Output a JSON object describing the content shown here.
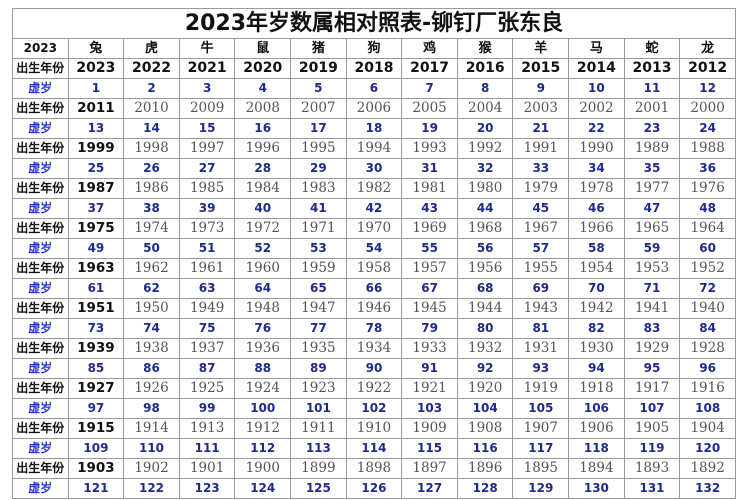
{
  "title": "2023年岁数属相对照表-铆钉厂张东良",
  "header": {
    "year": "2023",
    "zodiac": [
      "兔",
      "虎",
      "牛",
      "鼠",
      "猪",
      "狗",
      "鸡",
      "猴",
      "羊",
      "马",
      "蛇",
      "龙"
    ]
  },
  "birth_label": "出生年份",
  "age_label": "虚岁",
  "accent_color": "#1e2a8c",
  "rows": [
    {
      "years": [
        "2023",
        "2022",
        "2021",
        "2020",
        "2019",
        "2018",
        "2017",
        "2016",
        "2015",
        "2014",
        "2013",
        "2012"
      ],
      "ages": [
        "1",
        "2",
        "3",
        "4",
        "5",
        "6",
        "7",
        "8",
        "9",
        "10",
        "11",
        "12"
      ]
    },
    {
      "years": [
        "2011",
        "2010",
        "2009",
        "2008",
        "2007",
        "2006",
        "2005",
        "2004",
        "2003",
        "2002",
        "2001",
        "2000"
      ],
      "ages": [
        "13",
        "14",
        "15",
        "16",
        "17",
        "18",
        "19",
        "20",
        "21",
        "22",
        "23",
        "24"
      ]
    },
    {
      "years": [
        "1999",
        "1998",
        "1997",
        "1996",
        "1995",
        "1994",
        "1993",
        "1992",
        "1991",
        "1990",
        "1989",
        "1988"
      ],
      "ages": [
        "25",
        "26",
        "27",
        "28",
        "29",
        "30",
        "31",
        "32",
        "33",
        "34",
        "35",
        "36"
      ]
    },
    {
      "years": [
        "1987",
        "1986",
        "1985",
        "1984",
        "1983",
        "1982",
        "1981",
        "1980",
        "1979",
        "1978",
        "1977",
        "1976"
      ],
      "ages": [
        "37",
        "38",
        "39",
        "40",
        "41",
        "42",
        "43",
        "44",
        "45",
        "46",
        "47",
        "48"
      ]
    },
    {
      "years": [
        "1975",
        "1974",
        "1973",
        "1972",
        "1971",
        "1970",
        "1969",
        "1968",
        "1967",
        "1966",
        "1965",
        "1964"
      ],
      "ages": [
        "49",
        "50",
        "51",
        "52",
        "53",
        "54",
        "55",
        "56",
        "57",
        "58",
        "59",
        "60"
      ]
    },
    {
      "years": [
        "1963",
        "1962",
        "1961",
        "1960",
        "1959",
        "1958",
        "1957",
        "1956",
        "1955",
        "1954",
        "1953",
        "1952"
      ],
      "ages": [
        "61",
        "62",
        "63",
        "64",
        "65",
        "66",
        "67",
        "68",
        "69",
        "70",
        "71",
        "72"
      ]
    },
    {
      "years": [
        "1951",
        "1950",
        "1949",
        "1948",
        "1947",
        "1946",
        "1945",
        "1944",
        "1943",
        "1942",
        "1941",
        "1940"
      ],
      "ages": [
        "73",
        "74",
        "75",
        "76",
        "77",
        "78",
        "79",
        "80",
        "81",
        "82",
        "83",
        "84"
      ]
    },
    {
      "years": [
        "1939",
        "1938",
        "1937",
        "1936",
        "1935",
        "1934",
        "1933",
        "1932",
        "1931",
        "1930",
        "1929",
        "1928"
      ],
      "ages": [
        "85",
        "86",
        "87",
        "88",
        "89",
        "90",
        "91",
        "92",
        "93",
        "94",
        "95",
        "96"
      ]
    },
    {
      "years": [
        "1927",
        "1926",
        "1925",
        "1924",
        "1923",
        "1922",
        "1921",
        "1920",
        "1919",
        "1918",
        "1917",
        "1916"
      ],
      "ages": [
        "97",
        "98",
        "99",
        "100",
        "101",
        "102",
        "103",
        "104",
        "105",
        "106",
        "107",
        "108"
      ]
    },
    {
      "years": [
        "1915",
        "1914",
        "1913",
        "1912",
        "1911",
        "1910",
        "1909",
        "1908",
        "1907",
        "1906",
        "1905",
        "1904"
      ],
      "ages": [
        "109",
        "110",
        "111",
        "112",
        "113",
        "114",
        "115",
        "116",
        "117",
        "118",
        "119",
        "120"
      ]
    },
    {
      "years": [
        "1903",
        "1902",
        "1901",
        "1900",
        "1899",
        "1898",
        "1897",
        "1896",
        "1895",
        "1894",
        "1893",
        "1892"
      ],
      "ages": [
        "121",
        "122",
        "123",
        "124",
        "125",
        "126",
        "127",
        "128",
        "129",
        "130",
        "131",
        "132"
      ]
    }
  ]
}
